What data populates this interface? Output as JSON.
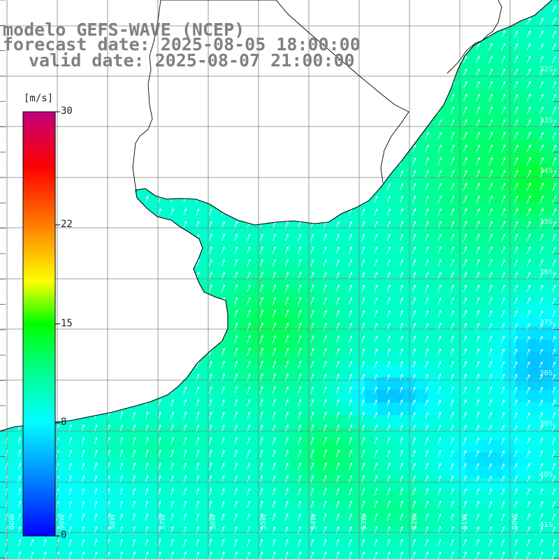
{
  "title": {
    "line1": "modelo GEFS-WAVE (NCEP)",
    "line2": "forecast date: 2025-08-05 18:00:00",
    "line3": "valid date: 2025-08-07 21:00:00"
  },
  "colorbar": {
    "unit": "[m/s]",
    "ticks": [
      {
        "label": "30",
        "value": 30
      },
      {
        "label": "22",
        "value": 22
      },
      {
        "label": "15",
        "value": 15
      },
      {
        "label": "8",
        "value": 8
      },
      {
        "label": "0",
        "value": 0
      }
    ],
    "colors": [
      "#0000ff",
      "#0080ff",
      "#00e0ff",
      "#00ff80",
      "#00ff00",
      "#ffff00",
      "#ff8000",
      "#ff0000",
      "#c00080"
    ]
  },
  "lat_labels": [
    "32S",
    "33S",
    "34S",
    "35S",
    "36S",
    "37S",
    "38S",
    "39S",
    "40S",
    "41S"
  ],
  "lon_labels": [
    "60W",
    "59W",
    "58W",
    "57W",
    "56W",
    "55W",
    "54W",
    "53W",
    "52W",
    "51W",
    "50W"
  ],
  "colors": {
    "land": "#ffffff",
    "grid": "#808080",
    "coast": "#000000",
    "title": "#808080",
    "arrow": "#ffffff"
  }
}
